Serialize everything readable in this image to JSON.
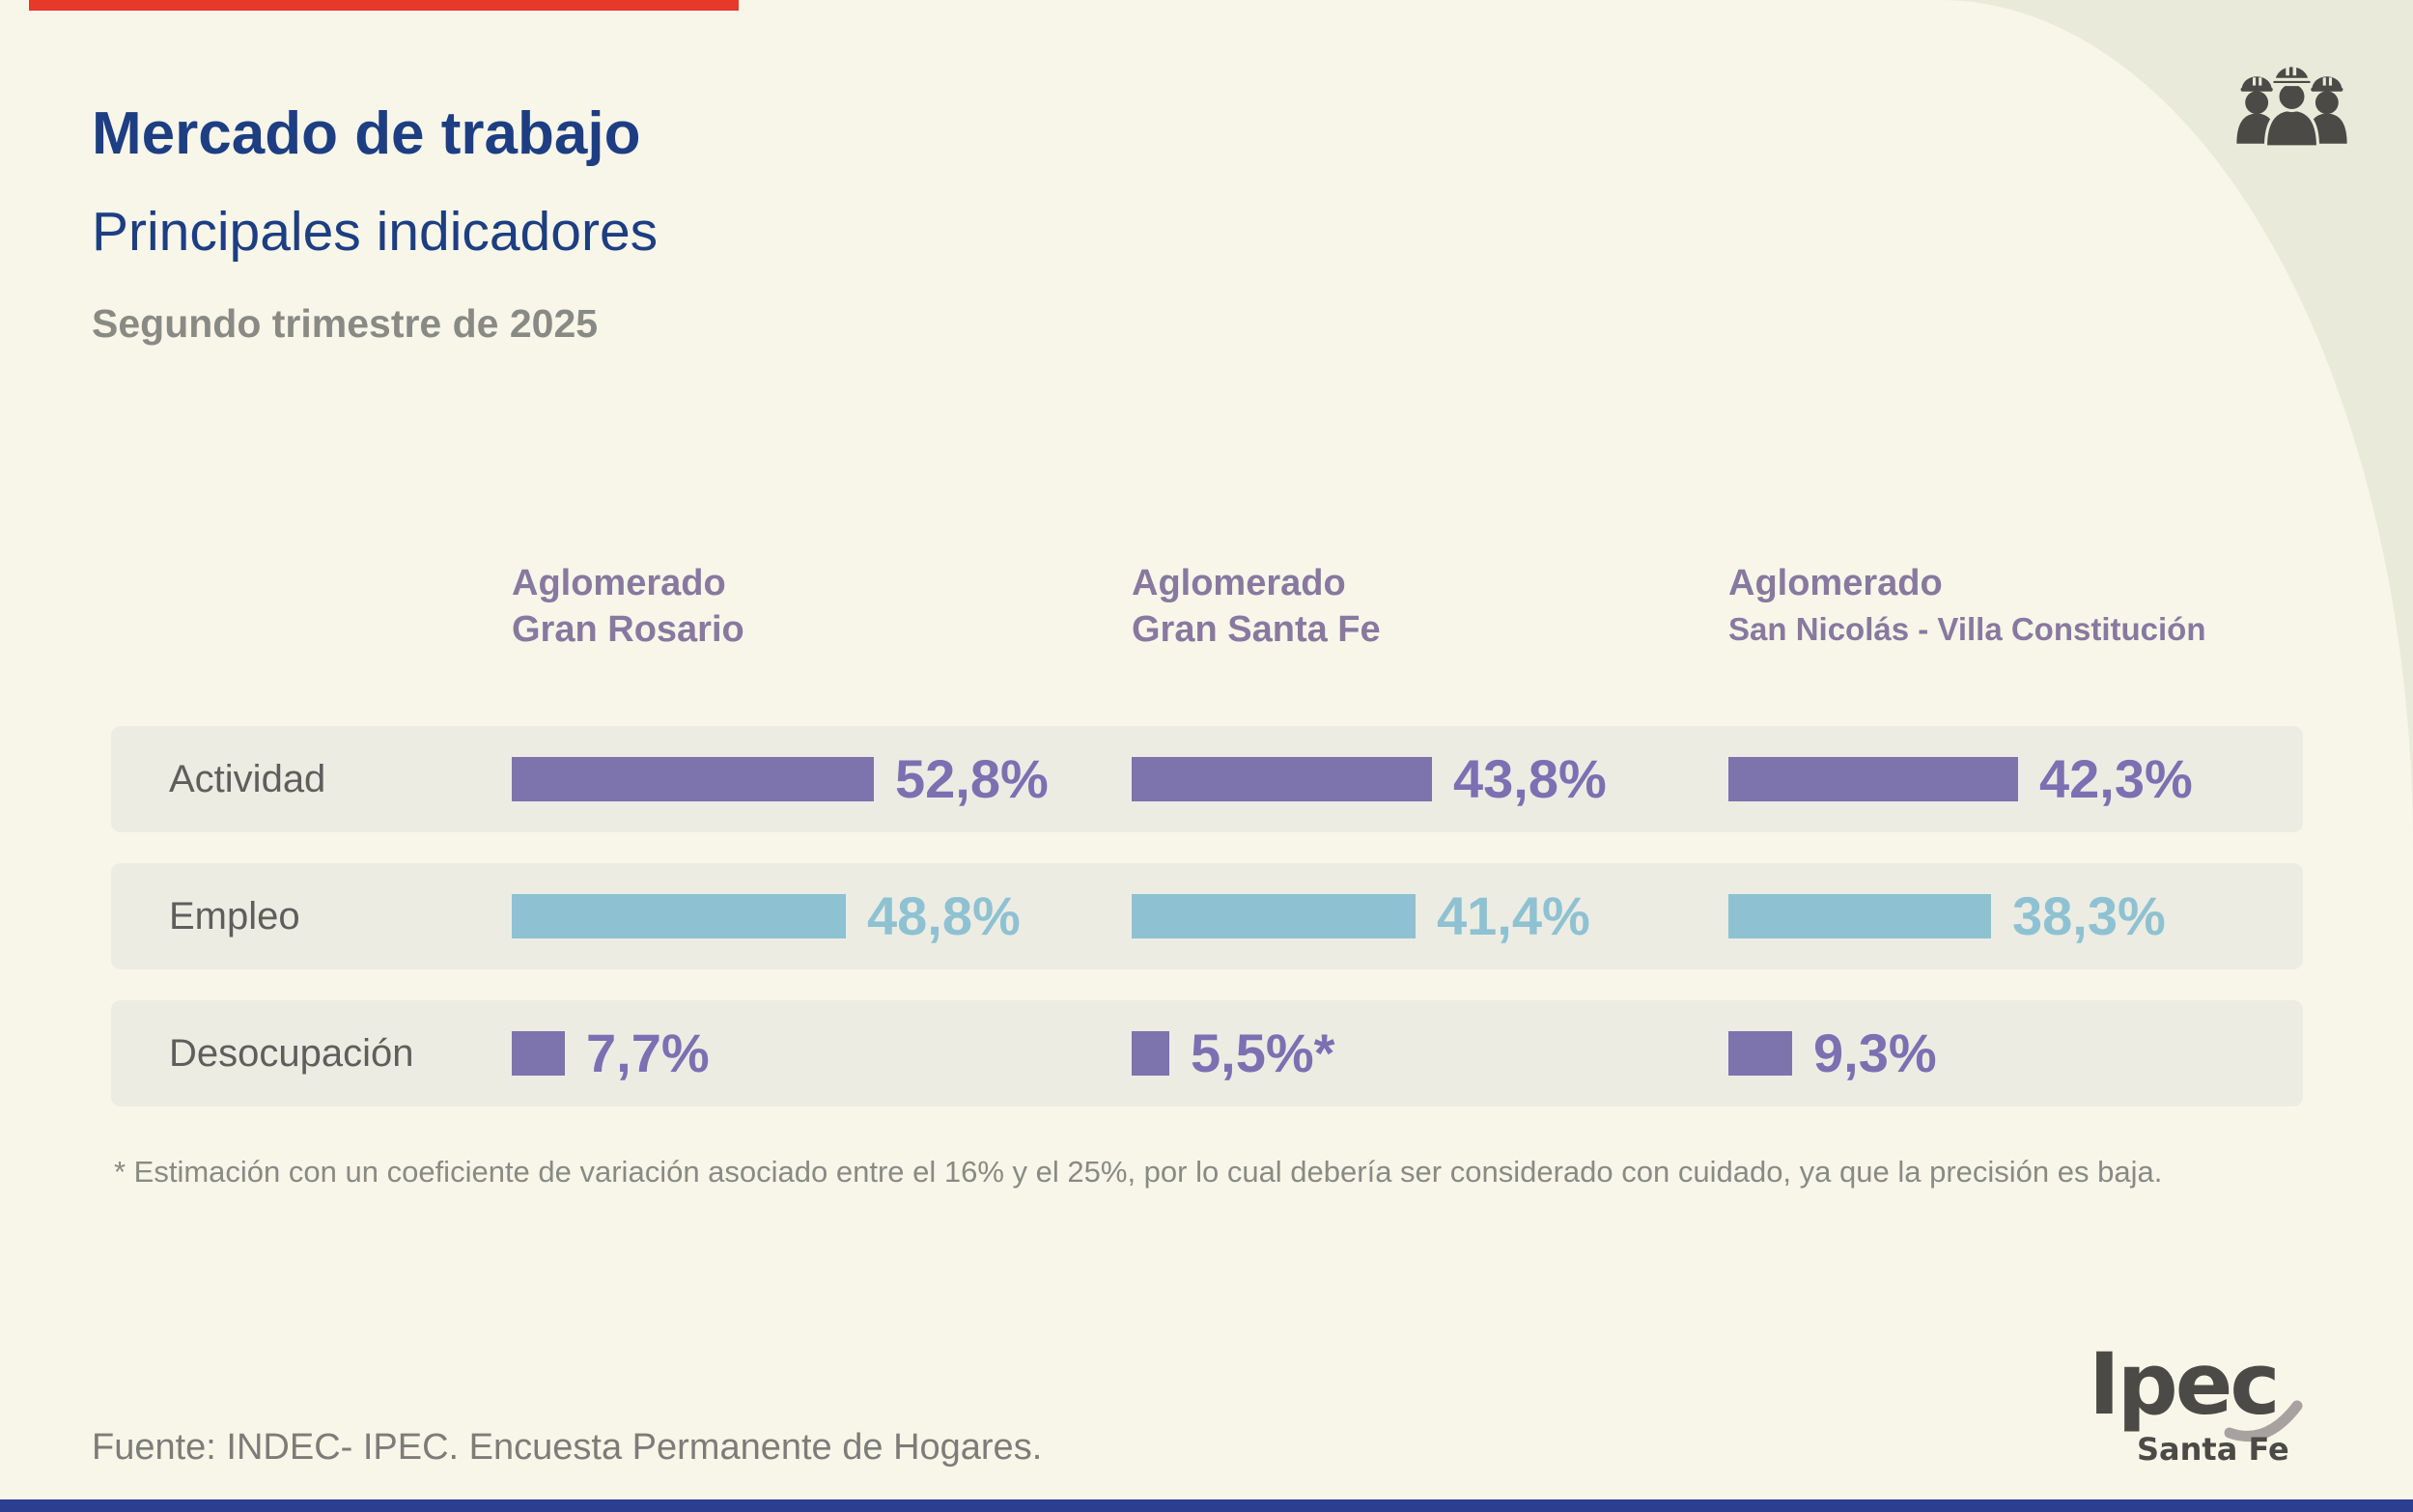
{
  "header": {
    "title": "Mercado de trabajo",
    "subtitle": "Principales indicadores",
    "period": "Segundo trimestre de 2025"
  },
  "table": {
    "columns": [
      {
        "line1": "Aglomerado",
        "line2": "Gran Rosario"
      },
      {
        "line1": "Aglomerado",
        "line2": "Gran Santa Fe"
      },
      {
        "line1": "Aglomerado",
        "line2": "San Nicolás - Villa Constitución"
      }
    ],
    "rows": [
      {
        "label": "Actividad",
        "palette": "purple",
        "cells": [
          {
            "value": 52.8,
            "display": "52,8%"
          },
          {
            "value": 43.8,
            "display": "43,8%"
          },
          {
            "value": 42.3,
            "display": "42,3%"
          }
        ]
      },
      {
        "label": "Empleo",
        "palette": "blue",
        "cells": [
          {
            "value": 48.8,
            "display": "48,8%"
          },
          {
            "value": 41.4,
            "display": "41,4%"
          },
          {
            "value": 38.3,
            "display": "38,3%"
          }
        ]
      },
      {
        "label": "Desocupación",
        "palette": "purple",
        "cells": [
          {
            "value": 7.7,
            "display": "7,7%"
          },
          {
            "value": 5.5,
            "display": "5,5%*"
          },
          {
            "value": 9.3,
            "display": "9,3%"
          }
        ]
      }
    ]
  },
  "footnote": "* Estimación con un coeficiente de variación asociado entre el 16% y el 25%, por lo cual debería ser considerado con cuidado, ya que la precisión es baja.",
  "source": "Fuente: INDEC- IPEC. Encuesta Permanente de Hogares.",
  "logo": {
    "name": "Ipec",
    "region": "Santa Fe"
  },
  "icons": {
    "workers": "three-construction-workers-with-hard-hats"
  },
  "colors": {
    "accent_red": "#e6392a",
    "accent_blue": "#2c3e90",
    "title_navy": "#1d3e82",
    "muted_gray": "#8a8a85",
    "column_header_purple": "#87799f",
    "bar_purple": "#7d74ae",
    "bar_blue": "#8ec2d2",
    "row_band_gray": "#edece3",
    "row_label_gray": "#5f5e5b",
    "logo_gray": "#4b4a46",
    "background_cream": "#f7f6e9",
    "corner_beige": "#eaeadb"
  },
  "chart_data": {
    "type": "bar",
    "orientation": "horizontal",
    "title": "Mercado de trabajo - Principales indicadores",
    "subtitle": "Segundo trimestre de 2025",
    "unit": "%",
    "xlim": [
      0,
      60
    ],
    "grid": false,
    "categories": [
      "Aglomerado Gran Rosario",
      "Aglomerado Gran Santa Fe",
      "Aglomerado San Nicolás - Villa Constitución"
    ],
    "series": [
      {
        "name": "Actividad",
        "color": "#7d74ae",
        "values": [
          52.8,
          43.8,
          42.3
        ],
        "value_labels": [
          "52,8%",
          "43,8%",
          "42,3%"
        ]
      },
      {
        "name": "Empleo",
        "color": "#8ec2d2",
        "values": [
          48.8,
          41.4,
          38.3
        ],
        "value_labels": [
          "48,8%",
          "41,4%",
          "38,3%"
        ]
      },
      {
        "name": "Desocupación",
        "color": "#7d74ae",
        "values": [
          7.7,
          5.5,
          9.3
        ],
        "value_labels": [
          "7,7%",
          "5,5%*",
          "9,3%"
        ]
      }
    ],
    "annotations": [
      "* Estimación con un coeficiente de variación asociado entre el 16% y el 25%, por lo cual debería ser considerado con cuidado, ya que la precisión es baja."
    ],
    "source": "Fuente: INDEC- IPEC. Encuesta Permanente de Hogares."
  }
}
